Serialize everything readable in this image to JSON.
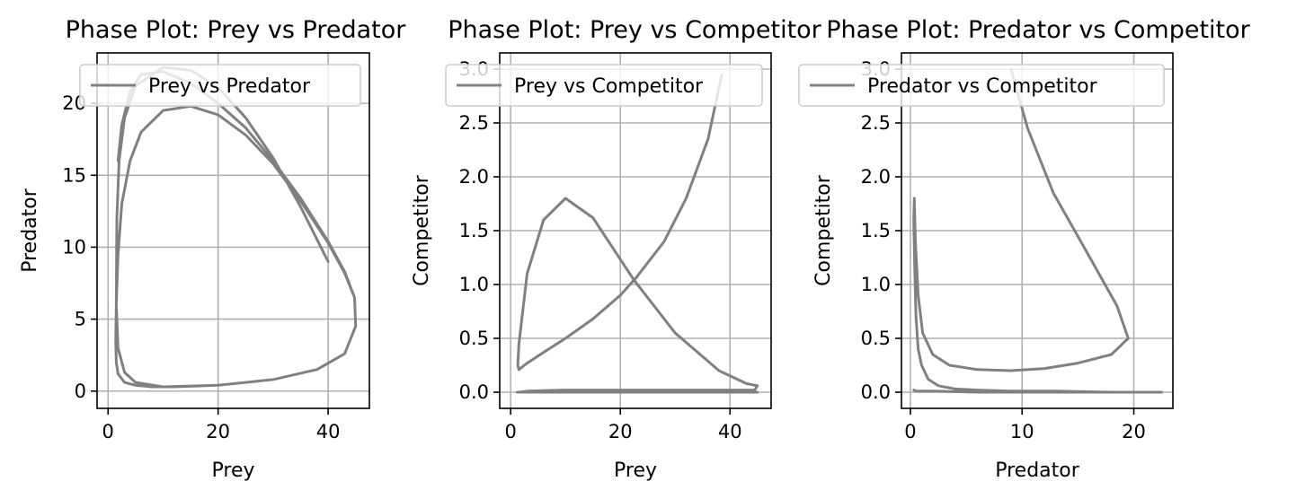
{
  "chart_data": [
    {
      "type": "line",
      "title": "Phase Plot: Prey vs Predator",
      "xlabel": "Prey",
      "ylabel": "Predator",
      "xlim": [
        -2,
        47.5
      ],
      "ylim": [
        -1.2,
        23.5
      ],
      "xticks": [
        0,
        20,
        40
      ],
      "yticks": [
        0,
        5,
        10,
        15,
        20
      ],
      "grid": true,
      "legend": "upper-right",
      "color": "#808080",
      "series": [
        {
          "name": "Prey vs Predator",
          "x": [
            40,
            35,
            30,
            25,
            20,
            15,
            10,
            5,
            3,
            2,
            1.6,
            1.5,
            1.8,
            3,
            5,
            10,
            20,
            30,
            38,
            43,
            45,
            44.8,
            43,
            40,
            35,
            30,
            25,
            20,
            15,
            10,
            6,
            4,
            2.5,
            1.8,
            1.5,
            1.4,
            1.5,
            1.8,
            3,
            5,
            8,
            12,
            20,
            30,
            38,
            43,
            45,
            44.8,
            43,
            40,
            35,
            30,
            25,
            20,
            15,
            10,
            6,
            4,
            2.5,
            1.8
          ],
          "y": [
            9,
            12.8,
            16.2,
            19,
            21.1,
            22.3,
            22.5,
            21.2,
            19,
            16,
            12,
            6,
            3,
            1.3,
            0.6,
            0.3,
            0.4,
            0.8,
            1.5,
            2.6,
            4.5,
            6.5,
            8.2,
            10.3,
            13.2,
            15.8,
            17.8,
            19.2,
            19.8,
            19.5,
            18,
            16,
            13,
            9.5,
            6,
            3.5,
            2,
            1.2,
            0.6,
            0.4,
            0.3,
            0.3,
            0.4,
            0.8,
            1.5,
            2.6,
            4.5,
            6.5,
            8.3,
            10.4,
            13.4,
            16,
            18.3,
            20,
            21.4,
            22.2,
            22,
            20.8,
            18.5,
            16
          ]
        }
      ]
    },
    {
      "type": "line",
      "title": "Phase Plot: Prey vs Competitor",
      "xlabel": "Prey",
      "ylabel": "Competitor",
      "xlim": [
        -2,
        47.5
      ],
      "ylim": [
        -0.15,
        3.15
      ],
      "xticks": [
        0,
        20,
        40
      ],
      "yticks": [
        0.0,
        0.5,
        1.0,
        1.5,
        2.0,
        2.5,
        3.0
      ],
      "grid": true,
      "legend": "upper-right",
      "color": "#808080",
      "series": [
        {
          "name": "Prey vs Competitor",
          "x": [
            38.5,
            36,
            32,
            28,
            23,
            20,
            15,
            10,
            6,
            3,
            1.5,
            1.3,
            1.5,
            3,
            6,
            10,
            15,
            22.5,
            30,
            38,
            43,
            45,
            44.5,
            40,
            30,
            20,
            10,
            3,
            1.5,
            1.2,
            3,
            10,
            20,
            30,
            40,
            45
          ],
          "y": [
            2.95,
            2.35,
            1.8,
            1.4,
            1.07,
            0.9,
            0.68,
            0.5,
            0.37,
            0.27,
            0.21,
            0.25,
            0.45,
            1.1,
            1.6,
            1.8,
            1.62,
            1.04,
            0.55,
            0.2,
            0.08,
            0.06,
            0.02,
            0.02,
            0.02,
            0.02,
            0.02,
            0.01,
            0.0,
            0.0,
            0.0,
            0.0,
            0.0,
            0.0,
            0.0,
            0.0
          ]
        }
      ]
    },
    {
      "type": "line",
      "title": "Phase Plot: Predator vs Competitor",
      "xlabel": "Predator",
      "ylabel": "Competitor",
      "xlim": [
        -0.8,
        23.5
      ],
      "ylim": [
        -0.15,
        3.15
      ],
      "xticks": [
        0,
        10,
        20
      ],
      "yticks": [
        0.0,
        0.5,
        1.0,
        1.5,
        2.0,
        2.5,
        3.0
      ],
      "grid": true,
      "legend": "upper-right",
      "color": "#808080",
      "series": [
        {
          "name": "Predator vs Competitor",
          "x": [
            9,
            10.5,
            12.8,
            15.8,
            18.5,
            19.5,
            18,
            15,
            12,
            9,
            6,
            3.5,
            2,
            1.1,
            0.7,
            0.45,
            0.35,
            0.3,
            0.4,
            0.5,
            0.7,
            1.0,
            1.6,
            2.5,
            4,
            6,
            9,
            13,
            18,
            22.5,
            22,
            18,
            12,
            6,
            2,
            0.5,
            0.3
          ],
          "y": [
            3.0,
            2.45,
            1.85,
            1.3,
            0.8,
            0.5,
            0.35,
            0.27,
            0.22,
            0.2,
            0.21,
            0.25,
            0.35,
            0.55,
            0.9,
            1.4,
            1.8,
            1.6,
            1.1,
            0.7,
            0.4,
            0.25,
            0.12,
            0.06,
            0.03,
            0.02,
            0.01,
            0.01,
            0.0,
            0.0,
            0.0,
            0.0,
            0.0,
            0.0,
            0.01,
            0.01,
            0.02
          ]
        }
      ]
    }
  ]
}
